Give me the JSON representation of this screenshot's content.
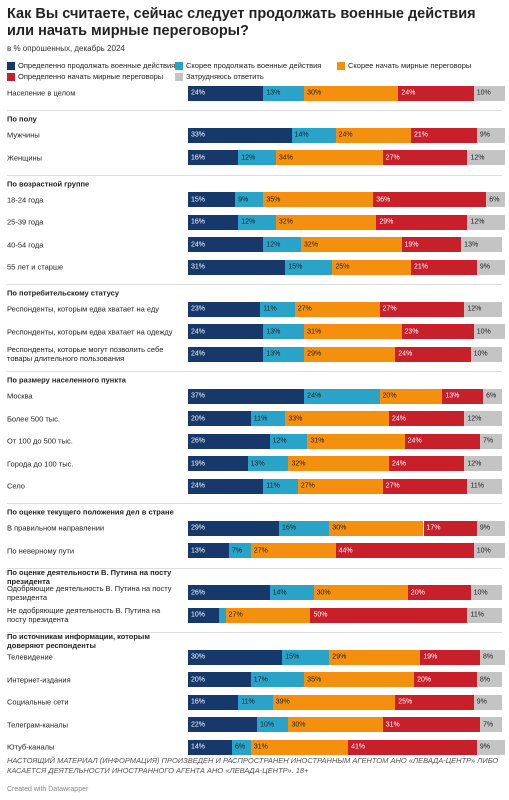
{
  "chart_data": {
    "type": "stacked-bar",
    "title": "Как Вы считаете, сейчас следует продолжать военные действия или начать мирные переговоры?",
    "subtitle": "в % опрошенных, декабрь 2024",
    "categories": [
      "Население в целом",
      "По полу",
      "Мужчины",
      "Женщины",
      "По возрастной группе",
      "18-24 года",
      "25-39 года",
      "40-54 года",
      "55 лет и старше",
      "По потребительскому статусу",
      "Респонденты, которым едва хватает на еду",
      "Респонденты, которым едва хватает на одежду",
      "Респонденты, которые могут позволить себе товары длительного пользования",
      "По размеру населенного пункта",
      "Москва",
      "Более 500 тыс.",
      "От 100 до 500 тыс.",
      "Города до 100 тыс.",
      "Село",
      "По оценке текущего положения дел в стране",
      "В правильном направлении",
      "По неверному пути",
      "По оценке деятельности В. Путина на посту президента",
      "Одобряющие деятельность В. Путина на посту президента",
      "Не одобряющие деятельность В. Путина на посту президента",
      "По источникам информации, которым доверяют респонденты",
      "Телевидение",
      "Интернет-издания",
      "Социальные сети",
      "Телеграм-каналы",
      "Ютуб-каналы"
    ],
    "series": [
      {
        "name": "Определенно продолжать военные действия",
        "color": "#16386b",
        "values": [
          24,
          null,
          33,
          16,
          null,
          15,
          16,
          24,
          31,
          null,
          23,
          24,
          24,
          null,
          37,
          20,
          26,
          19,
          24,
          null,
          29,
          13,
          null,
          26,
          10,
          null,
          30,
          20,
          16,
          22,
          14
        ],
        "value_labels": [
          "24%",
          null,
          "33%",
          "16%",
          null,
          "15%",
          "16%",
          "24%",
          "31%",
          null,
          "23%",
          "24%",
          "24%",
          null,
          "37%",
          "20%",
          "26%",
          "19%",
          "24%",
          null,
          "29%",
          "13%",
          null,
          "26%",
          "10%",
          null,
          "30%",
          "20%",
          "16%",
          "22%",
          "14%"
        ]
      },
      {
        "name": "Скорее продолжать военные действия",
        "color": "#2aa3c9",
        "values": [
          13,
          null,
          14,
          12,
          null,
          9,
          12,
          12,
          15,
          null,
          11,
          13,
          13,
          null,
          24,
          11,
          12,
          13,
          11,
          null,
          16,
          7,
          null,
          14,
          2,
          null,
          15,
          17,
          11,
          10,
          6
        ],
        "value_labels": [
          "13%",
          null,
          "14%",
          "12%",
          null,
          "9%",
          "12%",
          "12%",
          "15%",
          null,
          "11%",
          "13%",
          "13%",
          null,
          "24%",
          "11%",
          "12%",
          "13%",
          "11%",
          null,
          "16%",
          "7%",
          null,
          "14%",
          null,
          null,
          "15%",
          "17%",
          "11%",
          "10%",
          "6%"
        ]
      },
      {
        "name": "Скорее начать мирные переговоры",
        "color": "#f5900f",
        "values": [
          30,
          null,
          24,
          34,
          null,
          35,
          32,
          32,
          25,
          null,
          27,
          31,
          29,
          null,
          20,
          33,
          31,
          32,
          27,
          null,
          30,
          27,
          null,
          30,
          27,
          null,
          29,
          35,
          39,
          30,
          31
        ],
        "value_labels": [
          "30%",
          null,
          "24%",
          "34%",
          null,
          "35%",
          "32%",
          "32%",
          "25%",
          null,
          "27%",
          "31%",
          "29%",
          null,
          "20%",
          "33%",
          "31%",
          "32%",
          "27%",
          null,
          "30%",
          "27%",
          null,
          "30%",
          "27%",
          null,
          "29%",
          "35%",
          "39%",
          "30%",
          "31%"
        ]
      },
      {
        "name": "Определенно начать мирные переговоры",
        "color": "#c8202b",
        "values": [
          24,
          null,
          21,
          27,
          null,
          36,
          29,
          19,
          21,
          null,
          27,
          23,
          24,
          null,
          13,
          24,
          24,
          24,
          27,
          null,
          17,
          44,
          null,
          20,
          50,
          null,
          19,
          20,
          25,
          31,
          41
        ],
        "value_labels": [
          "24%",
          null,
          "21%",
          "27%",
          null,
          "36%",
          "29%",
          "19%",
          "21%",
          null,
          "27%",
          "23%",
          "24%",
          null,
          "13%",
          "24%",
          "24%",
          "24%",
          "27%",
          null,
          "17%",
          "44%",
          null,
          "20%",
          "50%",
          null,
          "19%",
          "20%",
          "25%",
          "31%",
          "41%"
        ]
      },
      {
        "name": "Затрудняюсь ответить",
        "color": "#c4c4c4",
        "values": [
          10,
          null,
          9,
          12,
          null,
          6,
          12,
          13,
          9,
          null,
          12,
          10,
          10,
          null,
          6,
          12,
          7,
          12,
          11,
          null,
          9,
          10,
          null,
          10,
          11,
          null,
          8,
          8,
          9,
          7,
          9
        ],
        "value_labels": [
          "10%",
          null,
          "9%",
          "12%",
          null,
          "6%",
          "12%",
          "13%",
          "9%",
          null,
          "12%",
          "10%",
          "10%",
          null,
          "6%",
          "12%",
          "7%",
          "12%",
          "11%",
          null,
          "9%",
          "10%",
          null,
          "10%",
          "11%",
          null,
          "8%",
          "8%",
          "9%",
          "7%",
          "9%"
        ]
      }
    ],
    "note": "НАСТОЯЩИЙ МАТЕРИАЛ (ИНФОРМАЦИЯ) ПРОИЗВЕДЕН И РАСПРОСТРАНЕН ИНОСТРАННЫМ АГЕНТОМ АНО «ЛЕВАДА-ЦЕНТР» ЛИБО КАСАЕТСЯ ДЕЯТЕЛЬНОСТИ ИНОСТРАННОГО АГЕНТА АНО «ЛЕВАДА-ЦЕНТР». 18+",
    "credit": "Created with Datawrapper"
  }
}
